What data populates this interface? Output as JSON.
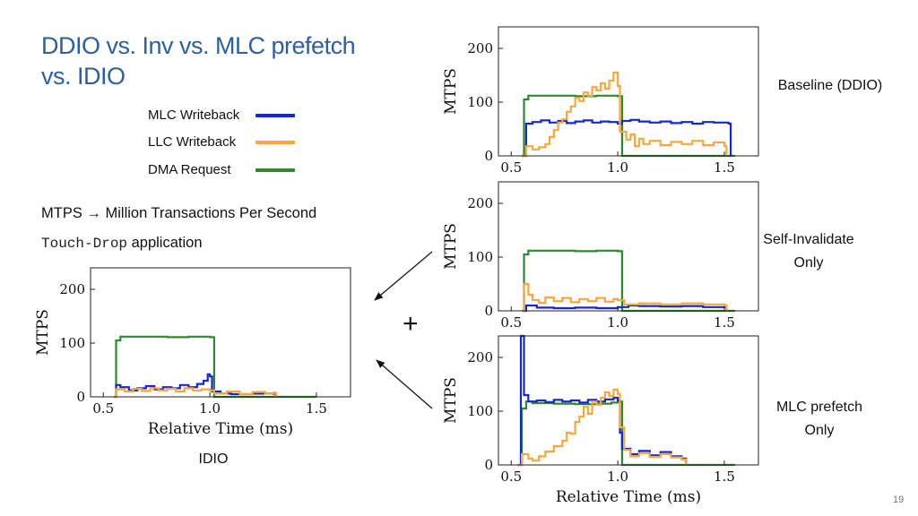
{
  "slide": {
    "title": "DDIO vs. Inv vs. MLC prefetch vs. IDIO",
    "note_mtps": "MTPS → Million Transactions Per Second",
    "note_app_mono": "Touch-Drop",
    "note_app_rest": " application",
    "plus": "+",
    "page_number": "19",
    "legend": [
      {
        "label": "MLC Writeback",
        "color": "#1428d4"
      },
      {
        "label": "LLC Writeback",
        "color": "#f5a83c"
      },
      {
        "label": "DMA Request",
        "color": "#2c8a2c"
      }
    ],
    "colors": {
      "title": "#2e5f9e",
      "arrow": "#111111"
    }
  },
  "chart_data": [
    {
      "id": "baseline",
      "type": "line",
      "caption": "Baseline (DDIO)",
      "ylabel": "MTPS",
      "xlabel": "",
      "xlim": [
        0.44,
        1.66
      ],
      "ylim": [
        0,
        240
      ],
      "xticks": [
        "0.5",
        "1.0",
        "1.5"
      ],
      "yticks": [
        "0",
        "100",
        "200"
      ],
      "series": [
        {
          "name": "DMA Request",
          "color": "#2c8a2c",
          "points": [
            [
              0.55,
              0
            ],
            [
              0.56,
              105
            ],
            [
              0.58,
              112
            ],
            [
              0.6,
              112
            ],
            [
              0.7,
              112
            ],
            [
              0.8,
              111
            ],
            [
              0.9,
              112
            ],
            [
              0.98,
              112
            ],
            [
              1.0,
              111
            ],
            [
              1.02,
              0
            ],
            [
              1.55,
              0
            ]
          ]
        },
        {
          "name": "MLC Writeback",
          "color": "#1428d4",
          "points": [
            [
              0.55,
              0
            ],
            [
              0.57,
              60
            ],
            [
              0.6,
              63
            ],
            [
              0.64,
              66
            ],
            [
              0.68,
              62
            ],
            [
              0.72,
              65
            ],
            [
              0.76,
              61
            ],
            [
              0.8,
              64
            ],
            [
              0.84,
              66
            ],
            [
              0.88,
              62
            ],
            [
              0.92,
              64
            ],
            [
              0.96,
              63
            ],
            [
              1.0,
              60
            ],
            [
              1.02,
              65
            ],
            [
              1.06,
              67
            ],
            [
              1.1,
              64
            ],
            [
              1.15,
              62
            ],
            [
              1.2,
              64
            ],
            [
              1.25,
              61
            ],
            [
              1.3,
              63
            ],
            [
              1.35,
              60
            ],
            [
              1.4,
              63
            ],
            [
              1.45,
              62
            ],
            [
              1.5,
              62
            ],
            [
              1.52,
              60
            ],
            [
              1.53,
              0
            ]
          ]
        },
        {
          "name": "LLC Writeback",
          "color": "#f5a83c",
          "points": [
            [
              0.55,
              0
            ],
            [
              0.57,
              18
            ],
            [
              0.6,
              12
            ],
            [
              0.63,
              16
            ],
            [
              0.66,
              22
            ],
            [
              0.68,
              35
            ],
            [
              0.7,
              48
            ],
            [
              0.72,
              62
            ],
            [
              0.74,
              68
            ],
            [
              0.76,
              82
            ],
            [
              0.78,
              92
            ],
            [
              0.8,
              108
            ],
            [
              0.82,
              102
            ],
            [
              0.84,
              118
            ],
            [
              0.86,
              112
            ],
            [
              0.88,
              128
            ],
            [
              0.9,
              122
            ],
            [
              0.92,
              135
            ],
            [
              0.94,
              125
            ],
            [
              0.96,
              140
            ],
            [
              0.98,
              155
            ],
            [
              1.0,
              130
            ],
            [
              1.01,
              45
            ],
            [
              1.04,
              30
            ],
            [
              1.06,
              40
            ],
            [
              1.08,
              18
            ],
            [
              1.1,
              32
            ],
            [
              1.12,
              22
            ],
            [
              1.15,
              28
            ],
            [
              1.2,
              20
            ],
            [
              1.25,
              26
            ],
            [
              1.3,
              22
            ],
            [
              1.35,
              28
            ],
            [
              1.4,
              20
            ],
            [
              1.45,
              25
            ],
            [
              1.5,
              18
            ],
            [
              1.51,
              0
            ]
          ]
        }
      ]
    },
    {
      "id": "self_invalidate",
      "type": "line",
      "caption": "Self-Invalidate Only",
      "ylabel": "MTPS",
      "xlabel": "",
      "xlim": [
        0.44,
        1.66
      ],
      "ylim": [
        0,
        240
      ],
      "xticks": [
        "0.5",
        "1.0",
        "1.5"
      ],
      "yticks": [
        "0",
        "100",
        "200"
      ],
      "series": [
        {
          "name": "DMA Request",
          "color": "#2c8a2c",
          "points": [
            [
              0.55,
              0
            ],
            [
              0.56,
              105
            ],
            [
              0.58,
              112
            ],
            [
              0.7,
              112
            ],
            [
              0.8,
              111
            ],
            [
              0.9,
              112
            ],
            [
              1.0,
              111
            ],
            [
              1.02,
              0
            ],
            [
              1.55,
              0
            ]
          ]
        },
        {
          "name": "MLC Writeback",
          "color": "#1428d4",
          "points": [
            [
              0.55,
              0
            ],
            [
              0.57,
              10
            ],
            [
              0.62,
              6
            ],
            [
              0.7,
              5
            ],
            [
              0.8,
              6
            ],
            [
              0.9,
              5
            ],
            [
              1.0,
              7
            ],
            [
              1.05,
              10
            ],
            [
              1.1,
              9
            ],
            [
              1.2,
              8
            ],
            [
              1.3,
              9
            ],
            [
              1.4,
              7
            ],
            [
              1.5,
              8
            ],
            [
              1.51,
              0
            ]
          ]
        },
        {
          "name": "LLC Writeback",
          "color": "#f5a83c",
          "points": [
            [
              0.55,
              0
            ],
            [
              0.56,
              50
            ],
            [
              0.58,
              30
            ],
            [
              0.6,
              20
            ],
            [
              0.63,
              15
            ],
            [
              0.66,
              25
            ],
            [
              0.7,
              18
            ],
            [
              0.74,
              24
            ],
            [
              0.78,
              16
            ],
            [
              0.82,
              22
            ],
            [
              0.86,
              18
            ],
            [
              0.9,
              24
            ],
            [
              0.94,
              17
            ],
            [
              0.98,
              22
            ],
            [
              1.0,
              20
            ],
            [
              1.03,
              12
            ],
            [
              1.1,
              14
            ],
            [
              1.2,
              12
            ],
            [
              1.3,
              14
            ],
            [
              1.4,
              12
            ],
            [
              1.5,
              10
            ],
            [
              1.51,
              0
            ]
          ]
        }
      ]
    },
    {
      "id": "mlc_prefetch",
      "type": "line",
      "caption": "MLC prefetch Only",
      "ylabel": "MTPS",
      "xlabel": "Relative Time (ms)",
      "xlim": [
        0.44,
        1.66
      ],
      "ylim": [
        0,
        240
      ],
      "xticks": [
        "0.5",
        "1.0",
        "1.5"
      ],
      "yticks": [
        "0",
        "100",
        "200"
      ],
      "series": [
        {
          "name": "DMA Request",
          "color": "#2c8a2c",
          "points": [
            [
              0.53,
              0
            ],
            [
              0.55,
              105
            ],
            [
              0.57,
              118
            ],
            [
              0.6,
              115
            ],
            [
              0.7,
              114
            ],
            [
              0.8,
              113
            ],
            [
              0.9,
              114
            ],
            [
              0.97,
              116
            ],
            [
              1.0,
              118
            ],
            [
              1.02,
              0
            ],
            [
              1.55,
              0
            ]
          ]
        },
        {
          "name": "MLC Writeback",
          "color": "#1428d4",
          "points": [
            [
              0.53,
              0
            ],
            [
              0.545,
              240
            ],
            [
              0.56,
              130
            ],
            [
              0.58,
              118
            ],
            [
              0.62,
              120
            ],
            [
              0.66,
              117
            ],
            [
              0.7,
              121
            ],
            [
              0.74,
              118
            ],
            [
              0.78,
              120
            ],
            [
              0.82,
              116
            ],
            [
              0.86,
              121
            ],
            [
              0.9,
              118
            ],
            [
              0.94,
              122
            ],
            [
              0.98,
              125
            ],
            [
              1.0,
              120
            ],
            [
              1.01,
              60
            ],
            [
              1.02,
              30
            ],
            [
              1.06,
              20
            ],
            [
              1.1,
              26
            ],
            [
              1.15,
              18
            ],
            [
              1.2,
              24
            ],
            [
              1.25,
              16
            ],
            [
              1.3,
              12
            ],
            [
              1.32,
              0
            ]
          ]
        },
        {
          "name": "LLC Writeback",
          "color": "#f5a83c",
          "points": [
            [
              0.53,
              0
            ],
            [
              0.55,
              20
            ],
            [
              0.58,
              12
            ],
            [
              0.6,
              8
            ],
            [
              0.63,
              16
            ],
            [
              0.66,
              25
            ],
            [
              0.7,
              35
            ],
            [
              0.74,
              45
            ],
            [
              0.76,
              60
            ],
            [
              0.78,
              58
            ],
            [
              0.8,
              80
            ],
            [
              0.82,
              90
            ],
            [
              0.84,
              108
            ],
            [
              0.86,
              95
            ],
            [
              0.88,
              118
            ],
            [
              0.9,
              112
            ],
            [
              0.92,
              125
            ],
            [
              0.94,
              135
            ],
            [
              0.96,
              128
            ],
            [
              0.98,
              140
            ],
            [
              1.0,
              132
            ],
            [
              1.01,
              70
            ],
            [
              1.03,
              28
            ],
            [
              1.06,
              16
            ],
            [
              1.1,
              22
            ],
            [
              1.15,
              15
            ],
            [
              1.2,
              20
            ],
            [
              1.25,
              14
            ],
            [
              1.3,
              10
            ],
            [
              1.32,
              0
            ]
          ]
        }
      ]
    },
    {
      "id": "idio",
      "type": "line",
      "caption": "IDIO",
      "ylabel": "MTPS",
      "xlabel": "Relative Time (ms)",
      "xlim": [
        0.44,
        1.66
      ],
      "ylim": [
        0,
        240
      ],
      "xticks": [
        "0.5",
        "1.0",
        "1.5"
      ],
      "yticks": [
        "0",
        "100",
        "200"
      ],
      "series": [
        {
          "name": "DMA Request",
          "color": "#2c8a2c",
          "points": [
            [
              0.55,
              0
            ],
            [
              0.56,
              105
            ],
            [
              0.58,
              112
            ],
            [
              0.7,
              112
            ],
            [
              0.8,
              111
            ],
            [
              0.9,
              112
            ],
            [
              1.0,
              111
            ],
            [
              1.02,
              0
            ],
            [
              1.5,
              0
            ]
          ]
        },
        {
          "name": "MLC Writeback",
          "color": "#1428d4",
          "points": [
            [
              0.55,
              0
            ],
            [
              0.56,
              22
            ],
            [
              0.58,
              18
            ],
            [
              0.62,
              12
            ],
            [
              0.66,
              16
            ],
            [
              0.7,
              20
            ],
            [
              0.74,
              14
            ],
            [
              0.78,
              18
            ],
            [
              0.82,
              16
            ],
            [
              0.86,
              22
            ],
            [
              0.9,
              18
            ],
            [
              0.94,
              24
            ],
            [
              0.97,
              30
            ],
            [
              0.99,
              42
            ],
            [
              1.0,
              38
            ],
            [
              1.01,
              10
            ],
            [
              1.05,
              6
            ],
            [
              1.1,
              5
            ],
            [
              1.2,
              6
            ],
            [
              1.3,
              5
            ],
            [
              1.31,
              0
            ]
          ]
        },
        {
          "name": "LLC Writeback",
          "color": "#f5a83c",
          "points": [
            [
              0.55,
              0
            ],
            [
              0.56,
              14
            ],
            [
              0.6,
              10
            ],
            [
              0.64,
              15
            ],
            [
              0.68,
              11
            ],
            [
              0.72,
              16
            ],
            [
              0.76,
              12
            ],
            [
              0.8,
              15
            ],
            [
              0.84,
              10
            ],
            [
              0.88,
              16
            ],
            [
              0.92,
              12
            ],
            [
              0.96,
              14
            ],
            [
              1.0,
              12
            ],
            [
              1.02,
              6
            ],
            [
              1.08,
              10
            ],
            [
              1.14,
              5
            ],
            [
              1.2,
              9
            ],
            [
              1.26,
              6
            ],
            [
              1.3,
              8
            ],
            [
              1.31,
              0
            ]
          ]
        }
      ]
    }
  ]
}
